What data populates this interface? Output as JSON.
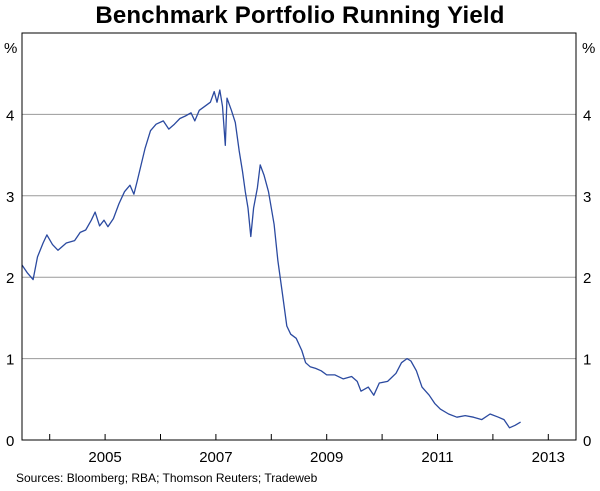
{
  "chart_data": {
    "type": "line",
    "title": "Benchmark Portfolio Running Yield",
    "unit_left": "%",
    "unit_right": "%",
    "source": "Sources: Bloomberg; RBA; Thomson Reuters; Tradeweb",
    "ylim": [
      0,
      5
    ],
    "xlim": [
      2003.5,
      2013.5
    ],
    "y_ticks": [
      0,
      1,
      2,
      3,
      4
    ],
    "y_tick_labels": [
      "0",
      "1",
      "2",
      "3",
      "4"
    ],
    "x_tick_labels": [
      "2005",
      "2007",
      "2009",
      "2011",
      "2013"
    ],
    "x_tick_positions": [
      2005,
      2007,
      2009,
      2011,
      2013
    ],
    "x_minor_ticks": [
      2004,
      2005,
      2006,
      2007,
      2008,
      2009,
      2010,
      2011,
      2012,
      2013
    ],
    "grid": true,
    "series": [
      {
        "color": "#2b4aa0",
        "points": [
          [
            2003.5,
            2.15
          ],
          [
            2003.6,
            2.05
          ],
          [
            2003.7,
            1.97
          ],
          [
            2003.78,
            2.25
          ],
          [
            2003.88,
            2.42
          ],
          [
            2003.95,
            2.52
          ],
          [
            2004.05,
            2.4
          ],
          [
            2004.15,
            2.33
          ],
          [
            2004.3,
            2.42
          ],
          [
            2004.45,
            2.45
          ],
          [
            2004.55,
            2.55
          ],
          [
            2004.65,
            2.58
          ],
          [
            2004.75,
            2.7
          ],
          [
            2004.82,
            2.8
          ],
          [
            2004.9,
            2.63
          ],
          [
            2004.98,
            2.7
          ],
          [
            2005.05,
            2.62
          ],
          [
            2005.15,
            2.72
          ],
          [
            2005.25,
            2.9
          ],
          [
            2005.35,
            3.05
          ],
          [
            2005.45,
            3.13
          ],
          [
            2005.52,
            3.02
          ],
          [
            2005.58,
            3.18
          ],
          [
            2005.65,
            3.38
          ],
          [
            2005.72,
            3.58
          ],
          [
            2005.82,
            3.8
          ],
          [
            2005.92,
            3.88
          ],
          [
            2006.05,
            3.92
          ],
          [
            2006.15,
            3.82
          ],
          [
            2006.25,
            3.88
          ],
          [
            2006.35,
            3.95
          ],
          [
            2006.45,
            3.98
          ],
          [
            2006.55,
            4.02
          ],
          [
            2006.62,
            3.92
          ],
          [
            2006.7,
            4.05
          ],
          [
            2006.8,
            4.1
          ],
          [
            2006.9,
            4.15
          ],
          [
            2006.97,
            4.28
          ],
          [
            2007.02,
            4.15
          ],
          [
            2007.07,
            4.3
          ],
          [
            2007.12,
            4.1
          ],
          [
            2007.17,
            3.62
          ],
          [
            2007.2,
            4.2
          ],
          [
            2007.28,
            4.05
          ],
          [
            2007.35,
            3.9
          ],
          [
            2007.42,
            3.55
          ],
          [
            2007.48,
            3.3
          ],
          [
            2007.53,
            3.05
          ],
          [
            2007.58,
            2.85
          ],
          [
            2007.63,
            2.5
          ],
          [
            2007.68,
            2.85
          ],
          [
            2007.75,
            3.1
          ],
          [
            2007.8,
            3.38
          ],
          [
            2007.87,
            3.25
          ],
          [
            2007.95,
            3.05
          ],
          [
            2008.05,
            2.65
          ],
          [
            2008.12,
            2.2
          ],
          [
            2008.2,
            1.8
          ],
          [
            2008.28,
            1.4
          ],
          [
            2008.35,
            1.3
          ],
          [
            2008.45,
            1.25
          ],
          [
            2008.55,
            1.1
          ],
          [
            2008.62,
            0.95
          ],
          [
            2008.7,
            0.9
          ],
          [
            2008.8,
            0.88
          ],
          [
            2008.9,
            0.85
          ],
          [
            2009.0,
            0.8
          ],
          [
            2009.15,
            0.8
          ],
          [
            2009.3,
            0.75
          ],
          [
            2009.45,
            0.78
          ],
          [
            2009.55,
            0.72
          ],
          [
            2009.62,
            0.6
          ],
          [
            2009.75,
            0.65
          ],
          [
            2009.85,
            0.55
          ],
          [
            2009.95,
            0.7
          ],
          [
            2010.1,
            0.72
          ],
          [
            2010.25,
            0.82
          ],
          [
            2010.35,
            0.95
          ],
          [
            2010.45,
            1.0
          ],
          [
            2010.52,
            0.97
          ],
          [
            2010.62,
            0.85
          ],
          [
            2010.72,
            0.65
          ],
          [
            2010.85,
            0.55
          ],
          [
            2010.95,
            0.45
          ],
          [
            2011.05,
            0.38
          ],
          [
            2011.2,
            0.32
          ],
          [
            2011.35,
            0.28
          ],
          [
            2011.5,
            0.3
          ],
          [
            2011.65,
            0.28
          ],
          [
            2011.8,
            0.25
          ],
          [
            2011.95,
            0.32
          ],
          [
            2012.1,
            0.28
          ],
          [
            2012.2,
            0.25
          ],
          [
            2012.3,
            0.15
          ],
          [
            2012.4,
            0.18
          ],
          [
            2012.5,
            0.22
          ]
        ]
      }
    ]
  }
}
